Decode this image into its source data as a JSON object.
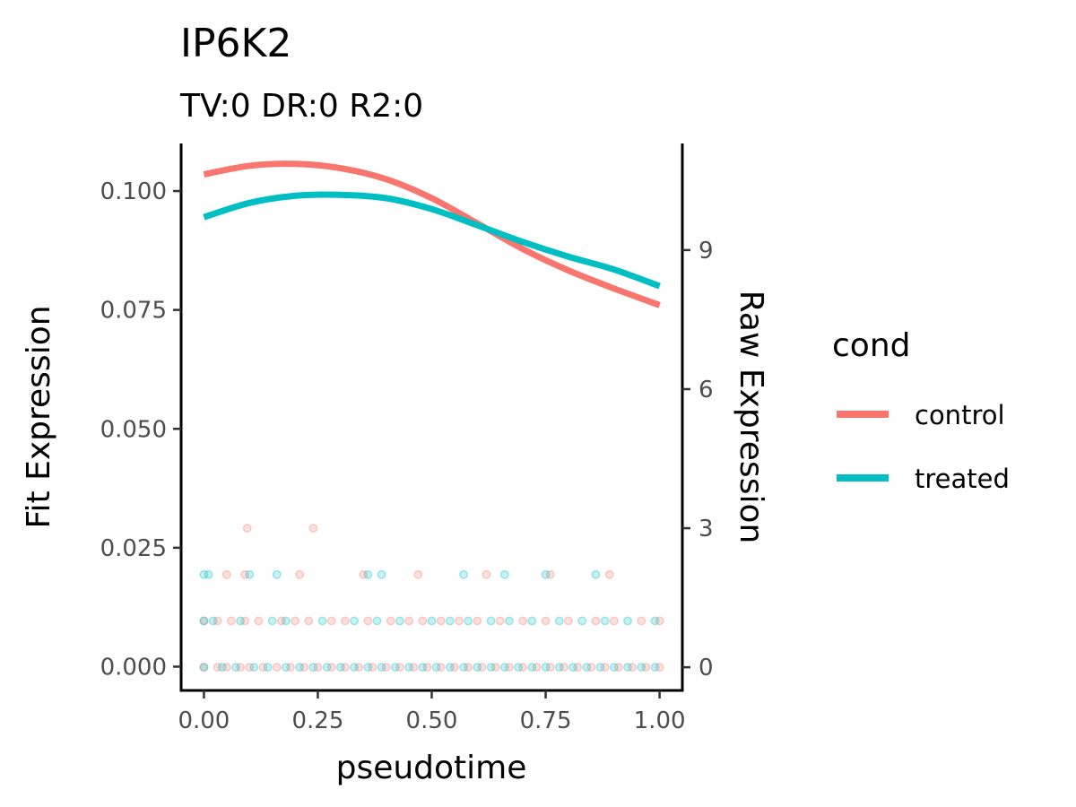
{
  "chart_data": {
    "type": "line",
    "title": "IP6K2",
    "subtitle": "TV:0 DR:0 R2:0",
    "xlabel": "pseudotime",
    "ylabel": "Fit Expression",
    "y2label": "Raw Expression",
    "xlim": [
      -0.05,
      1.05
    ],
    "ylim": [
      -0.005,
      0.11
    ],
    "y2lim": [
      -0.5,
      11.3
    ],
    "x_ticks": [
      0.0,
      0.25,
      0.5,
      0.75,
      1.0
    ],
    "x_tick_labels": [
      "0.00",
      "0.25",
      "0.50",
      "0.75",
      "1.00"
    ],
    "y_ticks": [
      0.0,
      0.025,
      0.05,
      0.075,
      0.1
    ],
    "y_tick_labels": [
      "0.000",
      "0.025",
      "0.050",
      "0.075",
      "0.100"
    ],
    "y2_ticks": [
      0,
      3,
      6,
      9
    ],
    "y2_tick_labels": [
      "0",
      "3",
      "6",
      "9"
    ],
    "grid": false,
    "legend": {
      "title": "cond",
      "position": "right",
      "entries": [
        {
          "label": "control",
          "color": "#F8766D"
        },
        {
          "label": "treated",
          "color": "#00BFC4"
        }
      ]
    },
    "series": [
      {
        "name": "control",
        "color": "#F8766D",
        "x": [
          0.0,
          0.1,
          0.2,
          0.3,
          0.4,
          0.5,
          0.6,
          0.7,
          0.8,
          0.9,
          1.0
        ],
        "y": [
          0.1035,
          0.1053,
          0.1057,
          0.1048,
          0.1025,
          0.0985,
          0.0932,
          0.0878,
          0.0833,
          0.0795,
          0.076
        ]
      },
      {
        "name": "treated",
        "color": "#00BFC4",
        "x": [
          0.0,
          0.1,
          0.2,
          0.3,
          0.4,
          0.5,
          0.6,
          0.7,
          0.8,
          0.9,
          1.0
        ],
        "y": [
          0.0945,
          0.0975,
          0.099,
          0.0992,
          0.0985,
          0.0962,
          0.0928,
          0.0893,
          0.0862,
          0.0835,
          0.08
        ]
      }
    ],
    "raw_points": [
      {
        "cond": "control",
        "y": 3,
        "x": [
          0.095,
          0.24
        ]
      },
      {
        "cond": "control",
        "y": 2,
        "x": [
          0.05,
          0.09,
          0.21,
          0.35,
          0.47,
          0.62,
          0.76,
          0.89
        ]
      },
      {
        "cond": "treated",
        "y": 2,
        "x": [
          0.0,
          0.01,
          0.1,
          0.16,
          0.36,
          0.39,
          0.57,
          0.66,
          0.75,
          0.86
        ]
      },
      {
        "cond": "control",
        "y": 1,
        "x": [
          0.0,
          0.03,
          0.06,
          0.09,
          0.12,
          0.17,
          0.2,
          0.23,
          0.28,
          0.31,
          0.36,
          0.41,
          0.45,
          0.48,
          0.52,
          0.56,
          0.6,
          0.65,
          0.7,
          0.75,
          0.8,
          0.86,
          0.9,
          0.96,
          1.0
        ]
      },
      {
        "cond": "treated",
        "y": 1,
        "x": [
          0.0,
          0.02,
          0.08,
          0.15,
          0.18,
          0.26,
          0.33,
          0.38,
          0.43,
          0.5,
          0.54,
          0.58,
          0.63,
          0.67,
          0.72,
          0.78,
          0.83,
          0.88,
          0.93,
          0.99
        ]
      },
      {
        "cond": "control",
        "y": 0,
        "x": [
          0.0,
          0.03,
          0.05,
          0.08,
          0.1,
          0.13,
          0.16,
          0.19,
          0.22,
          0.25,
          0.28,
          0.31,
          0.34,
          0.37,
          0.4,
          0.43,
          0.46,
          0.49,
          0.52,
          0.55,
          0.58,
          0.61,
          0.64,
          0.67,
          0.7,
          0.73,
          0.76,
          0.79,
          0.82,
          0.85,
          0.88,
          0.91,
          0.94,
          0.97,
          1.0
        ]
      },
      {
        "cond": "treated",
        "y": 0,
        "x": [
          0.0,
          0.04,
          0.07,
          0.11,
          0.14,
          0.18,
          0.21,
          0.24,
          0.27,
          0.3,
          0.33,
          0.36,
          0.39,
          0.42,
          0.45,
          0.48,
          0.51,
          0.54,
          0.57,
          0.6,
          0.63,
          0.66,
          0.69,
          0.72,
          0.75,
          0.78,
          0.81,
          0.84,
          0.87,
          0.9,
          0.93,
          0.96,
          0.99
        ]
      }
    ]
  }
}
